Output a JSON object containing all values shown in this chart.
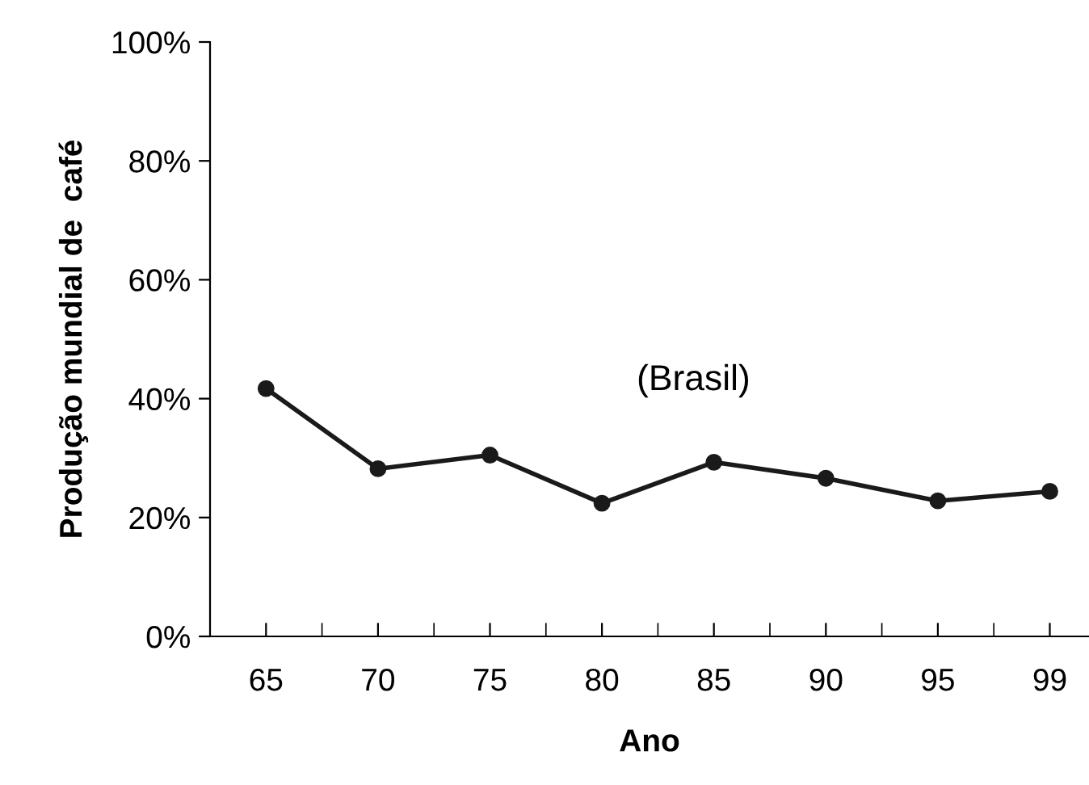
{
  "chart_data": {
    "type": "line",
    "xlabel": "Ano",
    "ylabel": "Produção mundial de  café",
    "categories": [
      "65",
      "70",
      "75",
      "80",
      "85",
      "90",
      "95",
      "99"
    ],
    "series": [
      {
        "color": "#1a1a1a",
        "values": [
          41.7,
          28.2,
          30.5,
          22.4,
          29.3,
          26.6,
          22.8,
          24.4
        ]
      }
    ],
    "ylim": [
      0,
      100
    ],
    "yticks": [
      {
        "value": 0,
        "label": "0%"
      },
      {
        "value": 20,
        "label": "20%"
      },
      {
        "value": 40,
        "label": "40%"
      },
      {
        "value": 60,
        "label": "60%"
      },
      {
        "value": 80,
        "label": "80%"
      },
      {
        "value": 100,
        "label": "100%"
      }
    ],
    "annotations": [
      "(Brasil)"
    ],
    "marker": "circle",
    "line_style": "solid",
    "grid": false,
    "legend": false
  }
}
